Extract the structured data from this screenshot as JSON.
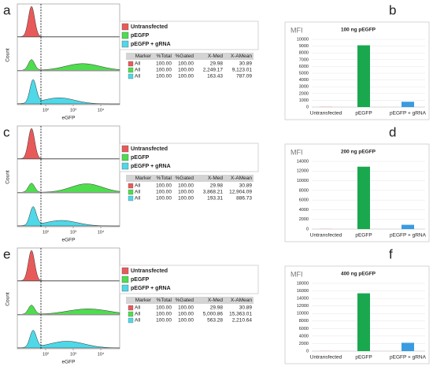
{
  "panels": [
    {
      "letter": "a",
      "x_label": "eGFP",
      "y_label": "Count",
      "x_ticks": [
        "10²",
        "10³",
        "10⁴"
      ],
      "legend": [
        {
          "name": "Untransfected",
          "color": "#e85a5a"
        },
        {
          "name": "pEGFP",
          "color": "#4fdc4f"
        },
        {
          "name": "pEGFP + gRNA",
          "color": "#4fd8e8"
        }
      ],
      "table": {
        "header": [
          "Marker",
          "%Total",
          "%Gated",
          "X-Med",
          "X-AMean"
        ],
        "rows": [
          [
            "All",
            "100.00",
            "100.00",
            "29.98",
            "30.89"
          ],
          [
            "All",
            "100.00",
            "100.00",
            "2,249.17",
            "9,123.01"
          ],
          [
            "All",
            "100.00",
            "100.00",
            "163.43",
            "787.09"
          ]
        ]
      }
    },
    {
      "letter": "c",
      "x_label": "eGFP",
      "y_label": "Count",
      "x_ticks": [
        "10²",
        "10³",
        "10⁴"
      ],
      "legend": [
        {
          "name": "Untransfected",
          "color": "#e85a5a"
        },
        {
          "name": "pEGFP",
          "color": "#4fdc4f"
        },
        {
          "name": "pEGFP + gRNA",
          "color": "#4fd8e8"
        }
      ],
      "table": {
        "header": [
          "Marker",
          "%Total",
          "%Gated",
          "X-Med",
          "X-AMean"
        ],
        "rows": [
          [
            "All",
            "100.00",
            "100.00",
            "29.98",
            "30.89"
          ],
          [
            "All",
            "100.00",
            "100.00",
            "3,868.21",
            "12,904.09"
          ],
          [
            "All",
            "100.00",
            "100.00",
            "193.31",
            "886.73"
          ]
        ]
      }
    },
    {
      "letter": "e",
      "x_label": "eGFP",
      "y_label": "Count",
      "x_ticks": [
        "10²",
        "10³",
        "10⁴"
      ],
      "legend": [
        {
          "name": "Untransfected",
          "color": "#e85a5a"
        },
        {
          "name": "pEGFP",
          "color": "#4fdc4f"
        },
        {
          "name": "pEGFP + gRNA",
          "color": "#4fd8e8"
        }
      ],
      "table": {
        "header": [
          "Marker",
          "%Total",
          "%Gated",
          "X-Med",
          "X-AMean"
        ],
        "rows": [
          [
            "All",
            "100.00",
            "100.00",
            "29.98",
            "30.89"
          ],
          [
            "All",
            "100.00",
            "100.00",
            "5,000.86",
            "15,363.01"
          ],
          [
            "All",
            "100.00",
            "100.00",
            "563.28",
            "2,210.64"
          ]
        ]
      }
    }
  ],
  "chart_data": [
    {
      "type": "bar",
      "letter": "b",
      "title": "100 ng pEGFP",
      "ylabel": "MFI",
      "categories": [
        "Untransfected",
        "pEGFP",
        "pEGFP + gRNA"
      ],
      "values": [
        30.89,
        9123.01,
        787.09
      ],
      "colors": [
        "#e07070",
        "#1aa84f",
        "#3a9be0"
      ],
      "ylim": [
        0,
        10000
      ],
      "yticks": [
        0,
        1000,
        2000,
        3000,
        4000,
        5000,
        6000,
        7000,
        8000,
        9000,
        10000
      ]
    },
    {
      "type": "bar",
      "letter": "d",
      "title": "200 ng pEGFP",
      "ylabel": "MFI",
      "categories": [
        "Untransfected",
        "pEGFP",
        "pEGFP + gRNA"
      ],
      "values": [
        30.89,
        12904.09,
        886.73
      ],
      "colors": [
        "#e07070",
        "#1aa84f",
        "#3a9be0"
      ],
      "ylim": [
        0,
        14000
      ],
      "yticks": [
        0,
        2000,
        4000,
        6000,
        8000,
        10000,
        12000,
        14000
      ]
    },
    {
      "type": "bar",
      "letter": "f",
      "title": "400 ng pEGFP",
      "ylabel": "MFI",
      "categories": [
        "Untransfected",
        "pEGFP",
        "pEGFP + gRNA"
      ],
      "values": [
        30.89,
        15363.01,
        2210.64
      ],
      "colors": [
        "#e07070",
        "#1aa84f",
        "#3a9be0"
      ],
      "ylim": [
        0,
        18000
      ],
      "yticks": [
        0,
        2000,
        4000,
        6000,
        8000,
        10000,
        12000,
        14000,
        16000,
        18000
      ]
    }
  ]
}
